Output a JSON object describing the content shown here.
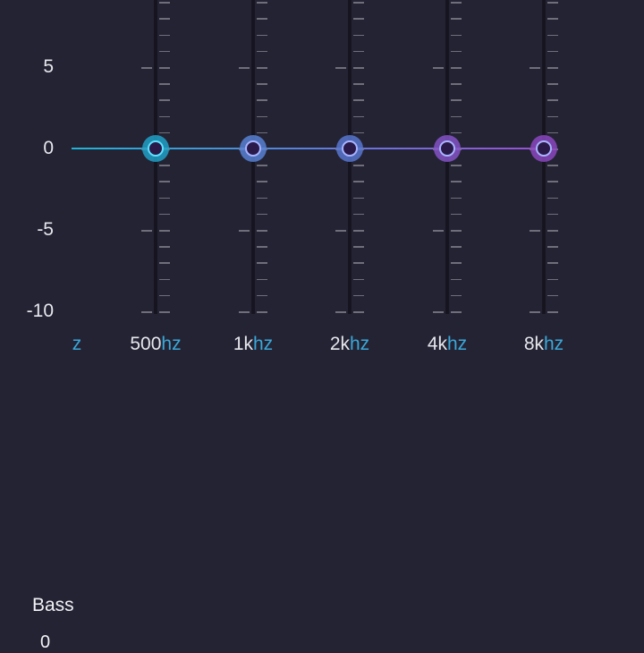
{
  "equalizer": {
    "y_axis_labels": [
      {
        "text": "5",
        "value": 5
      },
      {
        "text": "0",
        "value": 0
      },
      {
        "text": "-5",
        "value": -5
      },
      {
        "text": "-10",
        "value": -10
      }
    ],
    "partial_band_label_unit": "z",
    "bands": [
      {
        "num": "500",
        "unit": "hz",
        "value": 0,
        "color": "#1fa8cf"
      },
      {
        "num": "1k",
        "unit": "hz",
        "value": 0,
        "color": "#5a86dc"
      },
      {
        "num": "2k",
        "unit": "hz",
        "value": 0,
        "color": "#5a7ad8"
      },
      {
        "num": "4k",
        "unit": "hz",
        "value": 0,
        "color": "#8a55d0"
      },
      {
        "num": "8k",
        "unit": "hz",
        "value": 0,
        "color": "#9148c8"
      }
    ],
    "line_start_color": "#1fb5d6",
    "line_end_color": "#9b4fd6"
  },
  "bass": {
    "label": "Bass",
    "value": "0"
  }
}
